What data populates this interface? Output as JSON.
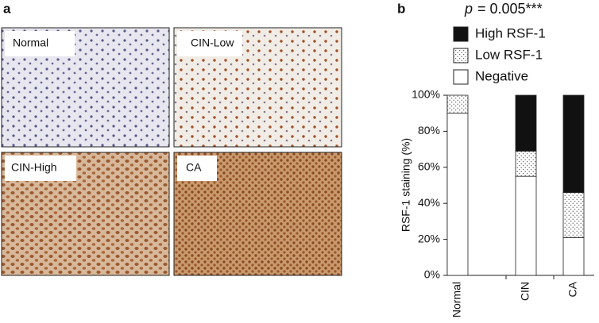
{
  "panels": [
    "a",
    "b"
  ],
  "images": [
    "Normal",
    "CIN-Low",
    "CIN-High",
    "CA"
  ],
  "chart_data": {
    "type": "stacked_bar",
    "annotation": {
      "symbol": "p",
      "text": "= 0.005***"
    },
    "y_label": "RSF-1 staining (%)",
    "categories": [
      "Normal",
      "CIN",
      "CA"
    ],
    "series": [
      {
        "name": "High RSF-1",
        "color": "#111111",
        "values": [
          0,
          31,
          54
        ]
      },
      {
        "name": "Low RSF-1",
        "color": "#ffffff",
        "hatch": "dots",
        "values": [
          10,
          14,
          25
        ]
      },
      {
        "name": "Negative",
        "color": "#ffffff",
        "values": [
          90,
          55,
          21
        ]
      }
    ],
    "ylim": [
      0,
      100
    ],
    "yticks": [
      {
        "value": 0,
        "label": "0%"
      },
      {
        "value": 20,
        "label": "20%"
      },
      {
        "value": 40,
        "label": "40%"
      },
      {
        "value": 60,
        "label": "60%"
      },
      {
        "value": 80,
        "label": "80%"
      },
      {
        "value": 100,
        "label": "100%"
      }
    ]
  }
}
